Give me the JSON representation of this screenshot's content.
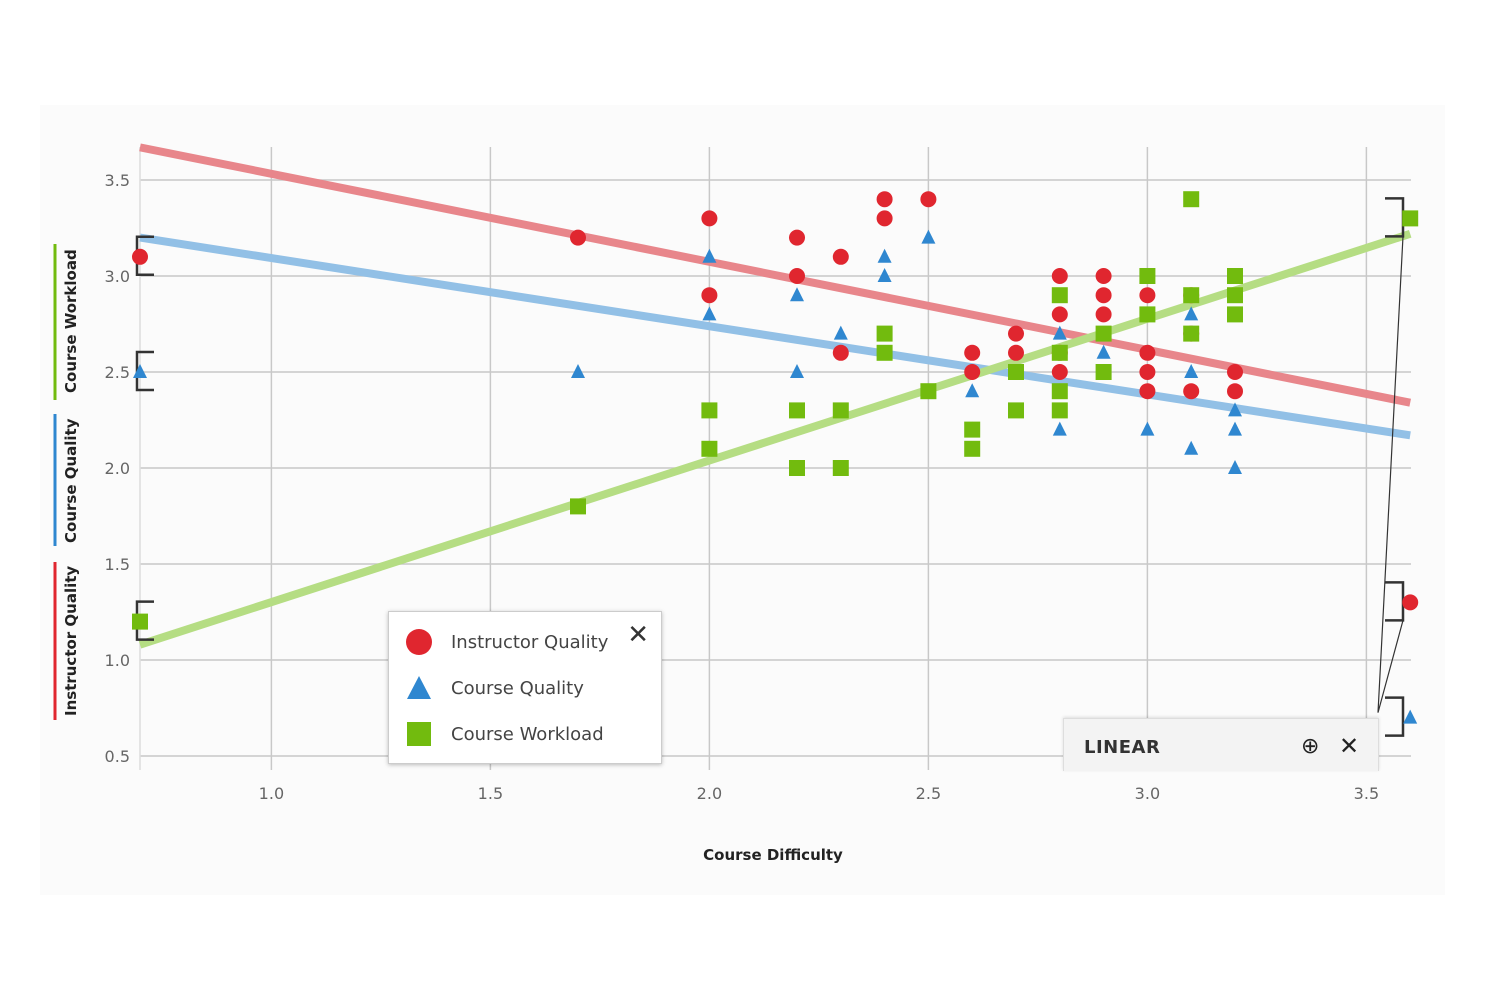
{
  "chart_data": {
    "type": "scatter",
    "title": "",
    "xlabel": "Course Difficulty",
    "ylabels": [
      "Instructor Quality",
      "Course Quality",
      "Course Workload"
    ],
    "xlim": [
      0.7,
      3.6
    ],
    "ylim": [
      0.43,
      3.67
    ],
    "xticks": [
      "1.0",
      "1.5",
      "2.0",
      "2.5",
      "3.0",
      "3.5"
    ],
    "yticks": [
      "0.5",
      "1.0",
      "1.5",
      "2.0",
      "2.5",
      "3.0",
      "3.5"
    ],
    "grid": true,
    "legend_placement": "bottom-left",
    "series": [
      {
        "name": "Instructor Quality",
        "marker": "circle",
        "color": "#e0262f",
        "trend_color": "#e8868b",
        "trend": [
          [
            0.7,
            3.67
          ],
          [
            3.6,
            2.34
          ]
        ],
        "points": [
          [
            0.7,
            3.1
          ],
          [
            1.7,
            3.2
          ],
          [
            2.0,
            3.3
          ],
          [
            2.0,
            2.9
          ],
          [
            2.2,
            3.2
          ],
          [
            2.2,
            3.0
          ],
          [
            2.3,
            3.1
          ],
          [
            2.3,
            2.6
          ],
          [
            2.4,
            3.4
          ],
          [
            2.4,
            3.3
          ],
          [
            2.5,
            3.4
          ],
          [
            2.6,
            2.6
          ],
          [
            2.6,
            2.5
          ],
          [
            2.7,
            2.7
          ],
          [
            2.7,
            2.6
          ],
          [
            2.8,
            3.0
          ],
          [
            2.8,
            2.8
          ],
          [
            2.8,
            2.6
          ],
          [
            2.8,
            2.5
          ],
          [
            2.9,
            3.0
          ],
          [
            2.9,
            2.9
          ],
          [
            2.9,
            2.8
          ],
          [
            3.0,
            2.9
          ],
          [
            3.0,
            2.6
          ],
          [
            3.0,
            2.5
          ],
          [
            3.0,
            2.4
          ],
          [
            3.1,
            2.9
          ],
          [
            3.1,
            2.7
          ],
          [
            3.1,
            2.4
          ],
          [
            3.2,
            2.5
          ],
          [
            3.2,
            2.4
          ],
          [
            3.6,
            1.3
          ]
        ]
      },
      {
        "name": "Course Quality",
        "marker": "triangle",
        "color": "#2f87d0",
        "trend_color": "#92c0e6",
        "trend": [
          [
            0.7,
            3.2
          ],
          [
            3.6,
            2.17
          ]
        ],
        "points": [
          [
            0.7,
            2.5
          ],
          [
            1.7,
            2.5
          ],
          [
            2.0,
            3.1
          ],
          [
            2.0,
            2.8
          ],
          [
            2.2,
            2.9
          ],
          [
            2.2,
            2.5
          ],
          [
            2.3,
            2.7
          ],
          [
            2.4,
            3.1
          ],
          [
            2.4,
            3.0
          ],
          [
            2.5,
            3.2
          ],
          [
            2.6,
            2.4
          ],
          [
            2.6,
            2.2
          ],
          [
            2.7,
            2.5
          ],
          [
            2.7,
            2.3
          ],
          [
            2.8,
            2.7
          ],
          [
            2.8,
            2.4
          ],
          [
            2.8,
            2.3
          ],
          [
            2.8,
            2.2
          ],
          [
            2.9,
            2.6
          ],
          [
            3.0,
            2.8
          ],
          [
            3.0,
            2.2
          ],
          [
            3.1,
            2.8
          ],
          [
            3.1,
            2.5
          ],
          [
            3.1,
            2.1
          ],
          [
            3.2,
            2.3
          ],
          [
            3.2,
            2.2
          ],
          [
            3.2,
            2.0
          ],
          [
            3.6,
            0.7
          ]
        ]
      },
      {
        "name": "Course Workload",
        "marker": "square",
        "color": "#72bb0e",
        "trend_color": "#b5dd83",
        "trend": [
          [
            0.7,
            1.08
          ],
          [
            3.6,
            3.22
          ]
        ],
        "points": [
          [
            0.7,
            1.2
          ],
          [
            1.7,
            1.8
          ],
          [
            2.0,
            2.3
          ],
          [
            2.0,
            2.1
          ],
          [
            2.2,
            2.3
          ],
          [
            2.2,
            2.0
          ],
          [
            2.3,
            2.3
          ],
          [
            2.3,
            2.0
          ],
          [
            2.4,
            2.7
          ],
          [
            2.4,
            2.6
          ],
          [
            2.5,
            2.4
          ],
          [
            2.6,
            2.2
          ],
          [
            2.6,
            2.1
          ],
          [
            2.7,
            2.5
          ],
          [
            2.7,
            2.3
          ],
          [
            2.8,
            2.9
          ],
          [
            2.8,
            2.6
          ],
          [
            2.8,
            2.4
          ],
          [
            2.8,
            2.3
          ],
          [
            2.9,
            2.7
          ],
          [
            2.9,
            2.5
          ],
          [
            3.0,
            3.0
          ],
          [
            3.0,
            2.8
          ],
          [
            3.1,
            3.4
          ],
          [
            3.1,
            2.9
          ],
          [
            3.1,
            2.7
          ],
          [
            3.2,
            3.0
          ],
          [
            3.2,
            2.9
          ],
          [
            3.2,
            2.8
          ],
          [
            3.6,
            3.3
          ]
        ]
      }
    ]
  },
  "legend": {
    "items": [
      "Instructor Quality",
      "Course Quality",
      "Course Workload"
    ],
    "close_icon": "close-icon"
  },
  "regression_panel": {
    "label": "LINEAR",
    "add_icon": "circle-plus-icon",
    "close_icon": "close-icon"
  }
}
